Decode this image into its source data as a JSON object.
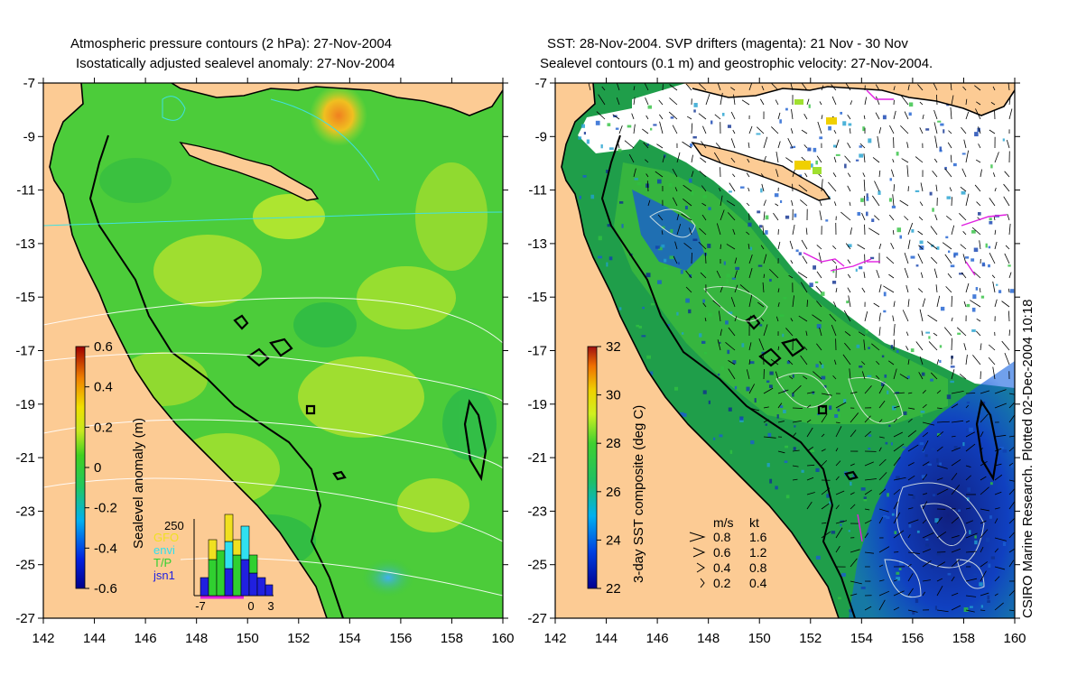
{
  "left_panel": {
    "title_line1": "Atmospheric pressure contours (2 hPa): 27-Nov-2004",
    "title_line2": "Isostatically adjusted sealevel anomaly: 27-Nov-2004",
    "colorbar_label": "Sealevel anomaly (m)",
    "colorbar_ticks": [
      "0.6",
      "0.4",
      "0.2",
      "0",
      "-0.2",
      "-0.4",
      "-0.6"
    ],
    "colorbar_range": [
      -0.6,
      0.6
    ],
    "inset": {
      "y_tick": "250",
      "x_ticks": [
        "-7",
        "0",
        "3"
      ],
      "legend": [
        {
          "label": "GFO",
          "color": "#f0e020"
        },
        {
          "label": "envi",
          "color": "#30e0f0"
        },
        {
          "label": "T/P",
          "color": "#30d030"
        },
        {
          "label": "jsn1",
          "color": "#2020e0"
        }
      ]
    }
  },
  "right_panel": {
    "title_line1": "SST: 28-Nov-2004. SVP drifters (magenta): 21 Nov - 30 Nov",
    "title_line2": "Sealevel contours (0.1 m) and geostrophic velocity: 27-Nov-2004.",
    "colorbar_label": "3-day SST composite (deg C)",
    "colorbar_ticks": [
      "32",
      "30",
      "28",
      "26",
      "24",
      "22"
    ],
    "colorbar_range": [
      22,
      32
    ],
    "velocity_key": {
      "header_ms": "m/s",
      "header_kt": "kt",
      "rows": [
        {
          "ms": "0.8",
          "kt": "1.6"
        },
        {
          "ms": "0.6",
          "kt": "1.2"
        },
        {
          "ms": "0.4",
          "kt": "0.8"
        },
        {
          "ms": "0.2",
          "kt": "0.4"
        }
      ]
    }
  },
  "axes": {
    "lat_ticks": [
      "-7",
      "-9",
      "-11",
      "-13",
      "-15",
      "-17",
      "-19",
      "-21",
      "-23",
      "-25",
      "-27"
    ],
    "lon_ticks": [
      "142",
      "144",
      "146",
      "148",
      "150",
      "152",
      "154",
      "156",
      "158",
      "160"
    ],
    "lat_range": [
      -27,
      -7
    ],
    "lon_range": [
      142,
      160
    ]
  },
  "credit": "CSIRO Marine Research. Plotted 02-Dec-2004 10:18",
  "colors": {
    "land": "#fccb94",
    "sea_green": "#3cc83c",
    "sea_yellowgreen": "#a8e030",
    "sst_blue": "#1040c0",
    "drifter": "#e020e0"
  }
}
